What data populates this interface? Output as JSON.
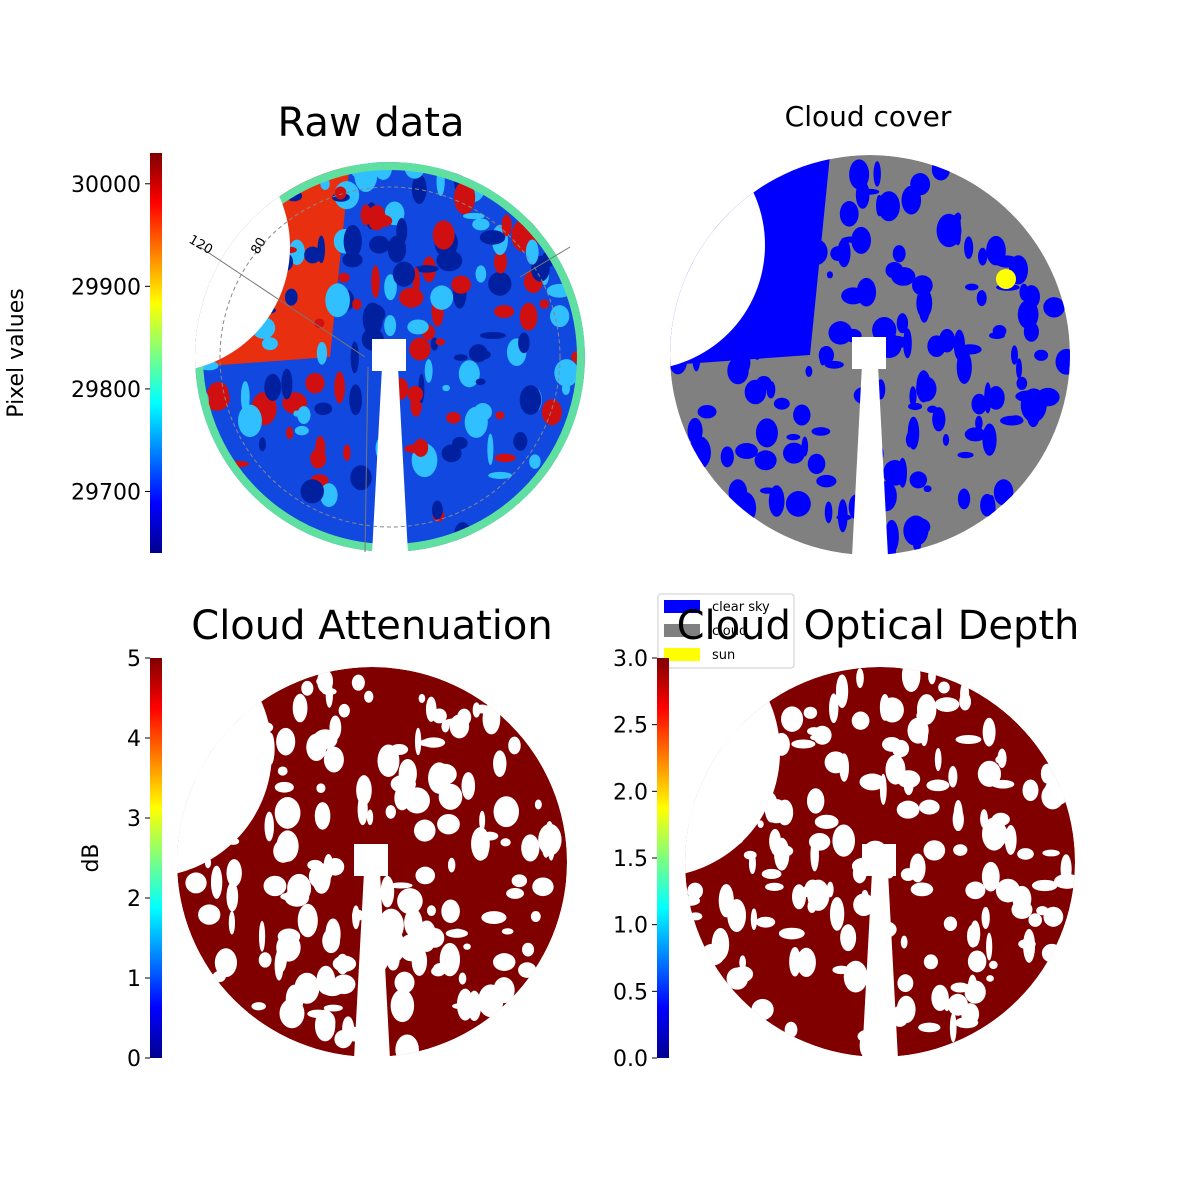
{
  "chart_data": [
    {
      "type": "heatmap",
      "title": "Raw data",
      "colorbar_label": "Pixel values",
      "clim": [
        29640,
        30030
      ],
      "cticks": [
        29700,
        29800,
        29900,
        30000
      ],
      "colormap": "jet",
      "annotations": [
        "120",
        "80"
      ]
    },
    {
      "type": "categorical-image",
      "title": "Cloud cover",
      "legend": [
        {
          "name": "clear sky",
          "color": "#0000ff"
        },
        {
          "name": "cloud",
          "color": "#808080"
        },
        {
          "name": "sun",
          "color": "#ffff00"
        }
      ]
    },
    {
      "type": "heatmap",
      "title": "Cloud Attenuation",
      "colorbar_label": "dB",
      "clim": [
        0,
        5
      ],
      "cticks": [
        0,
        1,
        2,
        3,
        4,
        5
      ],
      "colormap": "jet"
    },
    {
      "type": "heatmap",
      "title": "Cloud Optical Depth",
      "clim": [
        0,
        3
      ],
      "cticks": [
        {
          "value": 0,
          "label": "0.0"
        },
        0.5,
        {
          "value": 1,
          "label": "1.0"
        },
        1.5,
        {
          "value": 2,
          "label": "2.0"
        },
        2.5,
        {
          "value": 3,
          "label": "3.0"
        }
      ],
      "colormap": "jet"
    }
  ]
}
